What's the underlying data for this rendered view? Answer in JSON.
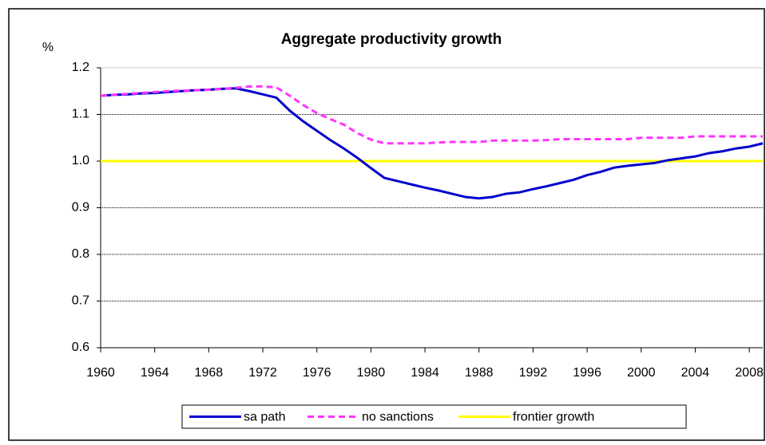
{
  "chart_data": {
    "type": "line",
    "title": "Aggregate productivity growth",
    "y_label": "%",
    "x": [
      1960,
      1961,
      1962,
      1963,
      1964,
      1965,
      1966,
      1967,
      1968,
      1969,
      1970,
      1971,
      1972,
      1973,
      1974,
      1975,
      1976,
      1977,
      1978,
      1979,
      1980,
      1981,
      1982,
      1983,
      1984,
      1985,
      1986,
      1987,
      1988,
      1989,
      1990,
      1991,
      1992,
      1993,
      1994,
      1995,
      1996,
      1997,
      1998,
      1999,
      2000,
      2001,
      2002,
      2003,
      2004,
      2005,
      2006,
      2007,
      2008,
      2009
    ],
    "series": [
      {
        "name": "sa path",
        "color": "#0000cc",
        "dash": false,
        "values": [
          1.14,
          1.142,
          1.143,
          1.145,
          1.146,
          1.148,
          1.15,
          1.152,
          1.153,
          1.155,
          1.156,
          1.15,
          1.143,
          1.136,
          1.108,
          1.085,
          1.065,
          1.045,
          1.027,
          1.007,
          0.985,
          0.964,
          0.957,
          0.95,
          0.943,
          0.937,
          0.93,
          0.923,
          0.92,
          0.923,
          0.93,
          0.933,
          0.94,
          0.946,
          0.953,
          0.96,
          0.97,
          0.977,
          0.986,
          0.99,
          0.993,
          0.996,
          1.002,
          1.006,
          1.01,
          1.017,
          1.021,
          1.027,
          1.031,
          1.038
        ]
      },
      {
        "name": "no sanctions",
        "color": "#ff33ff",
        "dash": true,
        "values": [
          1.14,
          1.142,
          1.144,
          1.146,
          1.148,
          1.15,
          1.151,
          1.152,
          1.153,
          1.155,
          1.157,
          1.16,
          1.16,
          1.158,
          1.14,
          1.12,
          1.103,
          1.09,
          1.078,
          1.06,
          1.046,
          1.038,
          1.038,
          1.038,
          1.038,
          1.04,
          1.041,
          1.041,
          1.041,
          1.044,
          1.044,
          1.044,
          1.044,
          1.045,
          1.047,
          1.047,
          1.047,
          1.047,
          1.047,
          1.047,
          1.05,
          1.05,
          1.05,
          1.05,
          1.053,
          1.053,
          1.053,
          1.053,
          1.053,
          1.053
        ]
      },
      {
        "name": "frontier growth",
        "color": "#ffff00",
        "dash": false,
        "values": [
          1,
          1,
          1,
          1,
          1,
          1,
          1,
          1,
          1,
          1,
          1,
          1,
          1,
          1,
          1,
          1,
          1,
          1,
          1,
          1,
          1,
          1,
          1,
          1,
          1,
          1,
          1,
          1,
          1,
          1,
          1,
          1,
          1,
          1,
          1,
          1,
          1,
          1,
          1,
          1,
          1,
          1,
          1,
          1,
          1,
          1,
          1,
          1,
          1,
          1
        ]
      }
    ],
    "xlim": [
      1960,
      2009
    ],
    "xticks": [
      1960,
      1964,
      1968,
      1972,
      1976,
      1980,
      1984,
      1988,
      1992,
      1996,
      2000,
      2004,
      2008
    ],
    "ylim": [
      0.6,
      1.2
    ],
    "yticks": [
      0.6,
      0.7,
      0.8,
      0.9,
      {
        "value": 1.0,
        "label": "1.0"
      },
      1.1,
      1.2
    ],
    "grid": true,
    "legend": "bottom"
  }
}
